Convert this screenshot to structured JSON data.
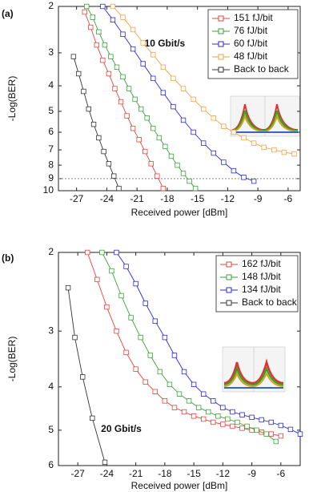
{
  "chart_data": [
    {
      "type": "line",
      "panel_label": "(a)",
      "annotation": "10 Gbit/s",
      "xlabel": "Received power [dBm]",
      "ylabel": "-Log(BER)",
      "xlim": [
        -28.8,
        -4.8
      ],
      "xticks": [
        -27,
        -24,
        -21,
        -18,
        -15,
        -12,
        -9,
        -6
      ],
      "ylim": [
        2,
        10
      ],
      "yticks": [
        2,
        3,
        4,
        5,
        6,
        7,
        8,
        9,
        10
      ],
      "ylog": true,
      "yinvert": true,
      "hline": 9,
      "legend": "upper right",
      "series": [
        {
          "name": "151 fJ/bit",
          "color": "#e8423a",
          "x": [
            -26.2,
            -25.6,
            -25.0,
            -24.4,
            -23.8,
            -23.2,
            -22.6,
            -22.0,
            -21.4,
            -20.8,
            -20.2,
            -19.6,
            -19.0,
            -18.4
          ],
          "values": [
            2.1,
            2.4,
            2.8,
            3.2,
            3.6,
            4.1,
            4.6,
            5.2,
            5.8,
            6.4,
            7.1,
            7.9,
            8.8,
            9.8
          ]
        },
        {
          "name": "76 fJ/bit",
          "color": "#3aa33a",
          "x": [
            -26.0,
            -25.4,
            -24.8,
            -24.2,
            -23.6,
            -23.0,
            -22.4,
            -21.8,
            -21.2,
            -20.6,
            -20.0,
            -19.4,
            -18.8,
            -18.2,
            -17.6,
            -17.0,
            -16.4,
            -15.8,
            -15.2
          ],
          "values": [
            2.0,
            2.2,
            2.5,
            2.8,
            3.1,
            3.4,
            3.7,
            4.1,
            4.5,
            4.9,
            5.3,
            5.8,
            6.3,
            6.8,
            7.4,
            8.0,
            8.6,
            9.2,
            9.8
          ]
        },
        {
          "name": "60 fJ/bit",
          "color": "#2a2ad8",
          "x": [
            -24.4,
            -23.4,
            -22.4,
            -21.4,
            -20.4,
            -19.4,
            -18.4,
            -17.4,
            -16.4,
            -15.4,
            -14.4,
            -13.4,
            -12.4,
            -11.4,
            -10.4,
            -9.4
          ],
          "values": [
            2.0,
            2.25,
            2.55,
            2.9,
            3.3,
            3.75,
            4.25,
            4.8,
            5.4,
            6.0,
            6.6,
            7.2,
            7.8,
            8.4,
            8.9,
            9.2
          ]
        },
        {
          "name": "48 fJ/bit",
          "color": "#f5a040",
          "x": [
            -23.4,
            -22.4,
            -21.4,
            -20.4,
            -19.4,
            -18.4,
            -17.4,
            -16.4,
            -15.4,
            -14.4,
            -13.4,
            -12.4,
            -11.4,
            -10.4,
            -9.4,
            -8.4,
            -7.4,
            -6.4,
            -5.4
          ],
          "values": [
            2.0,
            2.2,
            2.45,
            2.75,
            3.05,
            3.4,
            3.75,
            4.1,
            4.5,
            4.9,
            5.3,
            5.7,
            6.0,
            6.3,
            6.6,
            6.85,
            7.0,
            7.15,
            7.25
          ]
        },
        {
          "name": "Back to back",
          "color": "#333333",
          "x": [
            -27.3,
            -26.8,
            -26.3,
            -25.8,
            -25.3,
            -24.8,
            -24.3,
            -23.8,
            -23.3,
            -22.8
          ],
          "values": [
            3.1,
            3.6,
            4.2,
            4.9,
            5.6,
            6.3,
            7.1,
            7.9,
            8.8,
            9.8
          ]
        }
      ]
    },
    {
      "type": "line",
      "panel_label": "(b)",
      "annotation": "20 Gbit/s",
      "xlabel": "Received power [dBm]",
      "ylabel": "-Log(BER)",
      "xlim": [
        -29,
        -4
      ],
      "xticks": [
        -27,
        -24,
        -21,
        -18,
        -15,
        -12,
        -9,
        -6
      ],
      "ylim": [
        2,
        6
      ],
      "yticks": [
        2,
        3,
        4,
        5,
        6
      ],
      "ylog": true,
      "yinvert": true,
      "legend": "upper right",
      "series": [
        {
          "name": "162 fJ/bit",
          "color": "#e8423a",
          "x": [
            -26.0,
            -25.0,
            -24.0,
            -23.0,
            -22.0,
            -21.0,
            -20.0,
            -19.0,
            -18.0,
            -17.0,
            -16.0,
            -15.0,
            -14.0,
            -13.0,
            -12.0,
            -11.0,
            -10.0,
            -9.0,
            -8.0,
            -7.0,
            -6.0
          ],
          "values": [
            2.0,
            2.3,
            2.65,
            3.0,
            3.35,
            3.65,
            3.9,
            4.1,
            4.3,
            4.45,
            4.55,
            4.65,
            4.72,
            4.8,
            4.85,
            4.9,
            4.95,
            5.0,
            5.05,
            5.1,
            5.15
          ]
        },
        {
          "name": "148 fJ/bit",
          "color": "#3aa33a",
          "x": [
            -24.5,
            -23.5,
            -22.5,
            -21.5,
            -20.5,
            -19.5,
            -18.5,
            -17.5,
            -16.5,
            -15.5,
            -14.5,
            -13.5,
            -12.5,
            -11.5,
            -10.5,
            -9.5,
            -8.5,
            -7.5,
            -6.5
          ],
          "values": [
            2.0,
            2.2,
            2.5,
            2.8,
            3.1,
            3.4,
            3.7,
            3.95,
            4.15,
            4.3,
            4.45,
            4.55,
            4.65,
            4.72,
            4.8,
            4.9,
            5.0,
            5.1,
            5.3
          ]
        },
        {
          "name": "134 fJ/bit",
          "color": "#2a2ad8",
          "x": [
            -23.0,
            -22.0,
            -21.0,
            -20.0,
            -19.0,
            -18.0,
            -17.0,
            -16.0,
            -15.0,
            -14.0,
            -13.0,
            -12.0,
            -11.0,
            -10.0,
            -9.0,
            -8.0,
            -7.0,
            -6.0,
            -5.0,
            -4.0
          ],
          "values": [
            2.0,
            2.15,
            2.35,
            2.6,
            2.85,
            3.1,
            3.4,
            3.7,
            3.95,
            4.15,
            4.3,
            4.45,
            4.55,
            4.62,
            4.68,
            4.74,
            4.8,
            4.88,
            4.98,
            5.1
          ]
        },
        {
          "name": "Back to back",
          "color": "#333333",
          "x": [
            -28.0,
            -27.3,
            -26.5,
            -25.5,
            -24.2
          ],
          "values": [
            2.4,
            3.1,
            3.8,
            4.7,
            5.9
          ]
        }
      ]
    }
  ]
}
